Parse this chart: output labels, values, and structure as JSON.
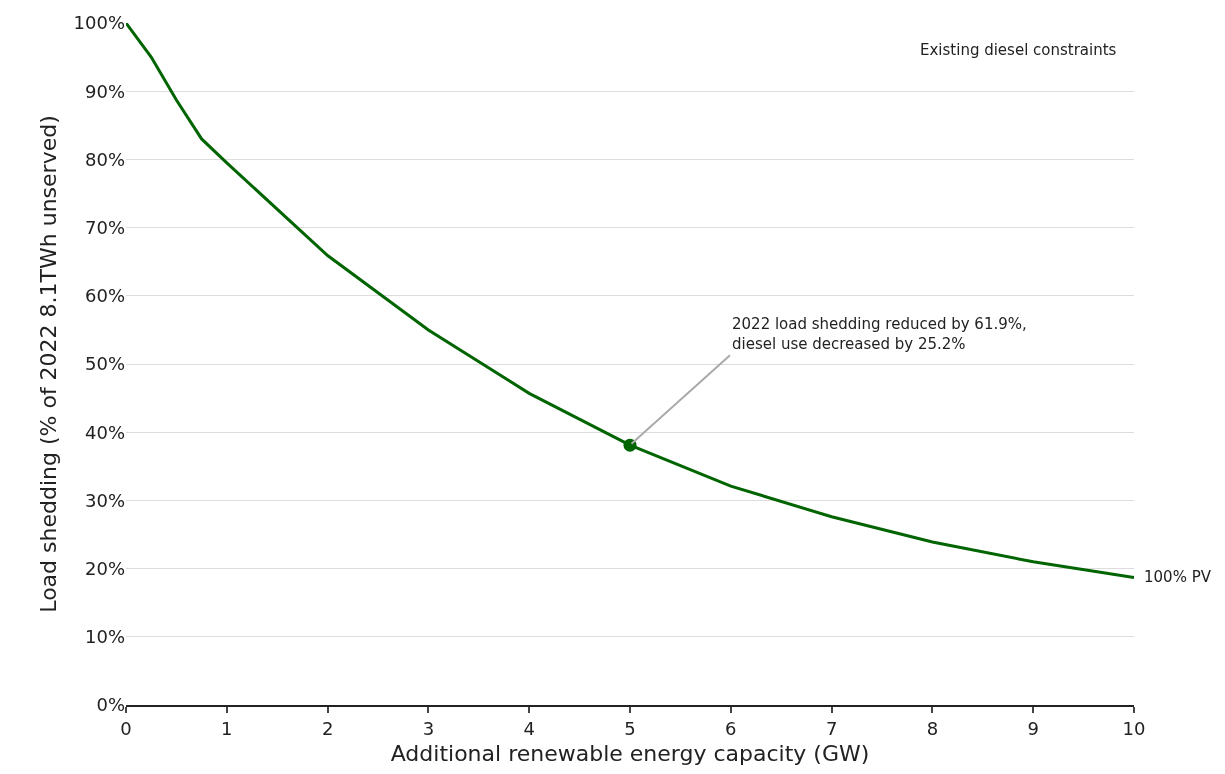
{
  "chart_data": {
    "type": "line",
    "xlabel": "Additional renewable energy capacity (GW)",
    "ylabel": "Load shedding (% of 2022 8.1TWh unserved)",
    "x": [
      0,
      0.25,
      0.5,
      0.75,
      1,
      2,
      3,
      4,
      5,
      6,
      7,
      8,
      9,
      10
    ],
    "series": [
      {
        "name": "100% PV",
        "color": "#006400",
        "values": [
          100,
          95,
          88.7,
          83,
          79.5,
          65.9,
          55,
          45.7,
          38.1,
          32.1,
          27.6,
          23.9,
          21,
          18.7
        ]
      },
      {
        "type": "scatter",
        "marker": "circle",
        "color": "#006400",
        "x": [
          5
        ],
        "values": [
          38.1
        ]
      }
    ],
    "annotations": [
      {
        "text": "2022 load shedding reduced by 61.9%,\ndiesel use decreased by 25.2%",
        "x": 5,
        "y": 38.1
      },
      "Existing diesel constraints"
    ],
    "xlim": [
      0,
      10
    ],
    "xticks": [
      0,
      1,
      2,
      3,
      4,
      5,
      6,
      7,
      8,
      9,
      10
    ],
    "ylim": [
      0,
      100
    ],
    "yticks": [
      {
        "value": 0,
        "label": "0%"
      },
      {
        "value": 10,
        "label": "10%"
      },
      {
        "value": 20,
        "label": "20%"
      },
      {
        "value": 30,
        "label": "30%"
      },
      {
        "value": 40,
        "label": "40%"
      },
      {
        "value": 50,
        "label": "50%"
      },
      {
        "value": 60,
        "label": "60%"
      },
      {
        "value": 70,
        "label": "70%"
      },
      {
        "value": 80,
        "label": "80%"
      },
      {
        "value": 90,
        "label": "90%"
      },
      {
        "value": 100,
        "label": "100%"
      }
    ],
    "grid": "y",
    "legend": false,
    "marker": "none",
    "line_style": "solid"
  }
}
